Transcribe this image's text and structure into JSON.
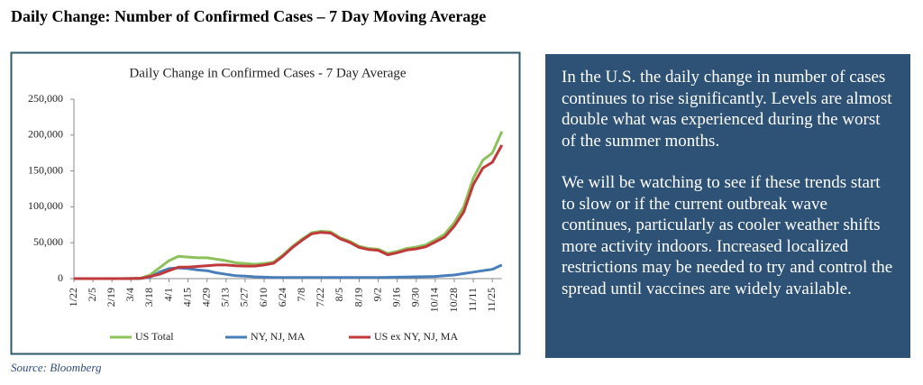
{
  "header": {
    "title": "Daily Change: Number of Confirmed Cases – 7 Day Moving Average"
  },
  "chart_data": {
    "type": "line",
    "title": "Daily Change in Confirmed Cases - 7 Day Average",
    "categories": [
      "1/22",
      null,
      "2/5",
      null,
      "2/19",
      null,
      "3/4",
      null,
      "3/18",
      null,
      "4/1",
      null,
      "4/15",
      null,
      "4/29",
      null,
      "5/13",
      null,
      "5/27",
      null,
      "6/10",
      null,
      "6/24",
      null,
      "7/8",
      null,
      "7/22",
      null,
      "8/5",
      null,
      "8/19",
      null,
      "9/2",
      null,
      "9/16",
      null,
      "9/30",
      null,
      "10/14",
      null,
      "10/28",
      null,
      "11/11",
      null,
      "11/25",
      null
    ],
    "series": [
      {
        "name": "US Total",
        "color": "#8dc15a",
        "values": [
          0,
          0,
          0,
          0,
          0,
          0,
          100,
          500,
          5000,
          15000,
          25000,
          31000,
          30000,
          29000,
          29000,
          27000,
          25000,
          22000,
          21000,
          20000,
          21000,
          23000,
          33000,
          45000,
          55000,
          64000,
          66000,
          65000,
          57000,
          52000,
          45000,
          42000,
          41000,
          35000,
          38000,
          42000,
          44000,
          47000,
          54000,
          62000,
          78000,
          100000,
          140000,
          165000,
          175000,
          205000
        ]
      },
      {
        "name": "NY, NJ, MA",
        "color": "#4a7ebb",
        "values": [
          0,
          0,
          0,
          0,
          0,
          0,
          0,
          200,
          2000,
          9000,
          14000,
          15000,
          14000,
          12000,
          11000,
          8000,
          6000,
          4000,
          3500,
          2500,
          2000,
          1500,
          1500,
          1500,
          1500,
          1500,
          1500,
          1500,
          1500,
          1500,
          1500,
          1500,
          1500,
          1800,
          2000,
          2200,
          2500,
          2700,
          3000,
          4000,
          5000,
          7000,
          9000,
          11000,
          13000,
          19000
        ]
      },
      {
        "name": "US ex NY, NJ, MA",
        "color": "#c0393b",
        "values": [
          0,
          0,
          0,
          0,
          0,
          0,
          100,
          300,
          3000,
          6000,
          11000,
          16000,
          16000,
          17000,
          18000,
          19000,
          19000,
          18000,
          17500,
          17500,
          19000,
          21500,
          31500,
          43500,
          53500,
          62500,
          64500,
          63500,
          55500,
          50500,
          43500,
          40500,
          39500,
          33200,
          36000,
          39800,
          41500,
          44300,
          51000,
          58000,
          73000,
          93000,
          131000,
          154000,
          162000,
          186000
        ]
      }
    ],
    "ylim": [
      0,
      250000
    ],
    "yticks": [
      0,
      {
        "value": 50000,
        "label": "50,000"
      },
      {
        "value": 100000,
        "label": "100,000"
      },
      {
        "value": 150000,
        "label": "150,000"
      },
      {
        "value": 200000,
        "label": "200,000"
      },
      {
        "value": 250000,
        "label": "250,000"
      }
    ],
    "legend": "bottom"
  },
  "source": "Source: Bloomberg",
  "commentary": [
    "In the U.S. the daily change in number of cases continues to rise significantly. Levels are almost double what was experienced during the worst of the summer months.",
    "We will be watching to see if these trends start to slow or if the current outbreak wave continues, particularly as cooler weather shifts more activity indoors. Increased localized restrictions may be needed to try and control the spread until vaccines are widely available."
  ]
}
